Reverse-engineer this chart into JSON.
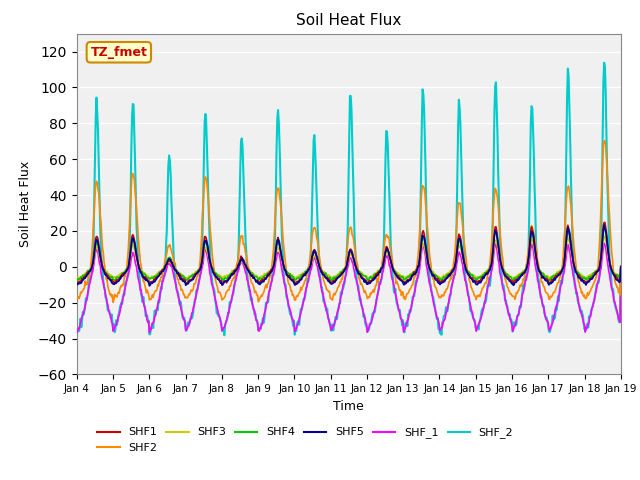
{
  "title": "Soil Heat Flux",
  "xlabel": "Time",
  "ylabel": "Soil Heat Flux",
  "ylim": [
    -60,
    130
  ],
  "yticks": [
    -60,
    -40,
    -20,
    0,
    20,
    40,
    60,
    80,
    100,
    120
  ],
  "x_tick_labels": [
    "Jan 4",
    "Jan 5",
    "Jan 6",
    "Jan 7",
    "Jan 8",
    "Jan 9",
    "Jan 10",
    "Jan 11",
    "Jan 12",
    "Jan 13",
    "Jan 14",
    "Jan 15",
    "Jan 16",
    "Jan 17",
    "Jan 18",
    "Jan 19"
  ],
  "series": {
    "SHF1": {
      "color": "#cc0000",
      "lw": 1.2
    },
    "SHF2": {
      "color": "#ff8800",
      "lw": 1.2
    },
    "SHF3": {
      "color": "#cccc00",
      "lw": 1.2
    },
    "SHF4": {
      "color": "#00cc00",
      "lw": 1.2
    },
    "SHF5": {
      "color": "#000099",
      "lw": 1.2
    },
    "SHF_1": {
      "color": "#ff00ff",
      "lw": 1.2
    },
    "SHF_2": {
      "color": "#00cccc",
      "lw": 1.5
    }
  },
  "annotation_box": {
    "text": "TZ_fmet",
    "facecolor": "#ffffcc",
    "edgecolor": "#cc8800",
    "textcolor": "#cc0000",
    "fontsize": 9,
    "fontweight": "bold"
  },
  "bg_color": "#e8e8e8",
  "plot_bg": "#f0f0f0",
  "grid_color": "#ffffff"
}
